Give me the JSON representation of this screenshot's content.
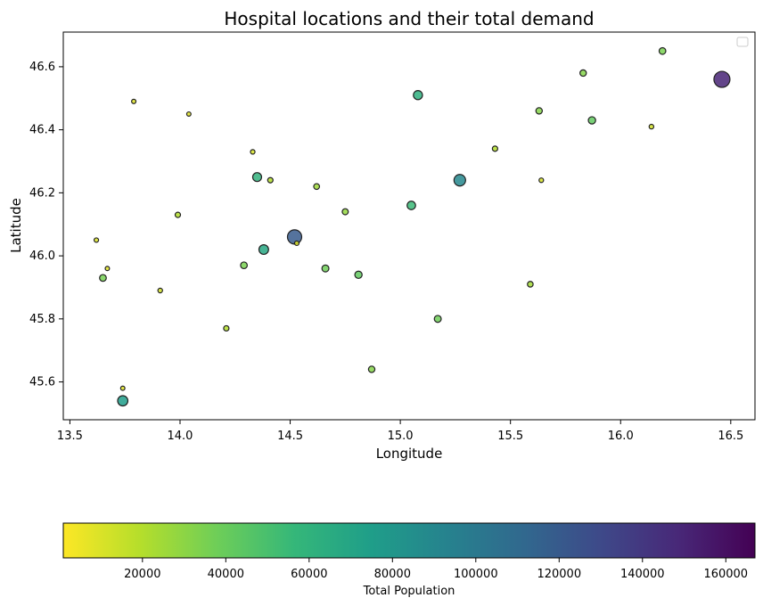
{
  "chart_data": {
    "type": "scatter",
    "title": "Hospital locations and their total demand",
    "xlabel": "Longitude",
    "ylabel": "Latitude",
    "xlim": [
      13.47,
      16.61
    ],
    "ylim": [
      45.48,
      46.71
    ],
    "xticks": [
      "13.5",
      "14.0",
      "14.5",
      "15.0",
      "15.5",
      "16.0",
      "16.5"
    ],
    "yticks": [
      "45.6",
      "45.8",
      "46.0",
      "46.2",
      "46.4",
      "46.6"
    ],
    "legend": "top-right",
    "grid": false,
    "colorbar": {
      "label": "Total Population",
      "colormap": "viridis (reversed)",
      "range": [
        1000,
        167000
      ],
      "ticks": [
        "20000",
        "40000",
        "60000",
        "80000",
        "100000",
        "120000",
        "140000",
        "160000"
      ],
      "colors": [
        "#fde725",
        "#b5de2b",
        "#6ece58",
        "#35b779",
        "#1f9e89",
        "#26828e",
        "#31688e",
        "#3e4989",
        "#482878",
        "#440154"
      ]
    },
    "points": [
      {
        "x": 16.19,
        "y": 46.65,
        "demand": 35000
      },
      {
        "x": 15.83,
        "y": 46.58,
        "demand": 32000
      },
      {
        "x": 16.46,
        "y": 46.56,
        "demand": 150000
      },
      {
        "x": 13.79,
        "y": 46.49,
        "demand": 9000
      },
      {
        "x": 14.04,
        "y": 46.45,
        "demand": 8000
      },
      {
        "x": 15.08,
        "y": 46.51,
        "demand": 62000
      },
      {
        "x": 15.63,
        "y": 46.46,
        "demand": 32000
      },
      {
        "x": 15.87,
        "y": 46.43,
        "demand": 42000
      },
      {
        "x": 16.14,
        "y": 46.41,
        "demand": 12000
      },
      {
        "x": 14.33,
        "y": 46.33,
        "demand": 11000
      },
      {
        "x": 15.43,
        "y": 46.34,
        "demand": 20000
      },
      {
        "x": 14.35,
        "y": 46.25,
        "demand": 60000
      },
      {
        "x": 14.41,
        "y": 46.24,
        "demand": 20000
      },
      {
        "x": 15.27,
        "y": 46.24,
        "demand": 90000
      },
      {
        "x": 15.64,
        "y": 46.24,
        "demand": 11000
      },
      {
        "x": 14.62,
        "y": 46.22,
        "demand": 25000
      },
      {
        "x": 15.05,
        "y": 46.16,
        "demand": 55000
      },
      {
        "x": 14.75,
        "y": 46.14,
        "demand": 28000
      },
      {
        "x": 13.99,
        "y": 46.13,
        "demand": 20000
      },
      {
        "x": 13.62,
        "y": 46.05,
        "demand": 10000
      },
      {
        "x": 14.52,
        "y": 46.06,
        "demand": 120000
      },
      {
        "x": 14.53,
        "y": 46.04,
        "demand": 10000
      },
      {
        "x": 14.38,
        "y": 46.02,
        "demand": 68000
      },
      {
        "x": 13.67,
        "y": 45.96,
        "demand": 8000
      },
      {
        "x": 14.29,
        "y": 45.97,
        "demand": 35000
      },
      {
        "x": 14.66,
        "y": 45.96,
        "demand": 38000
      },
      {
        "x": 13.65,
        "y": 45.93,
        "demand": 36000
      },
      {
        "x": 14.81,
        "y": 45.94,
        "demand": 42000
      },
      {
        "x": 15.59,
        "y": 45.91,
        "demand": 24000
      },
      {
        "x": 13.91,
        "y": 45.89,
        "demand": 12000
      },
      {
        "x": 15.17,
        "y": 45.8,
        "demand": 38000
      },
      {
        "x": 14.21,
        "y": 45.77,
        "demand": 20000
      },
      {
        "x": 14.87,
        "y": 45.64,
        "demand": 32000
      },
      {
        "x": 13.74,
        "y": 45.58,
        "demand": 8000
      },
      {
        "x": 13.74,
        "y": 45.54,
        "demand": 75000
      }
    ]
  }
}
